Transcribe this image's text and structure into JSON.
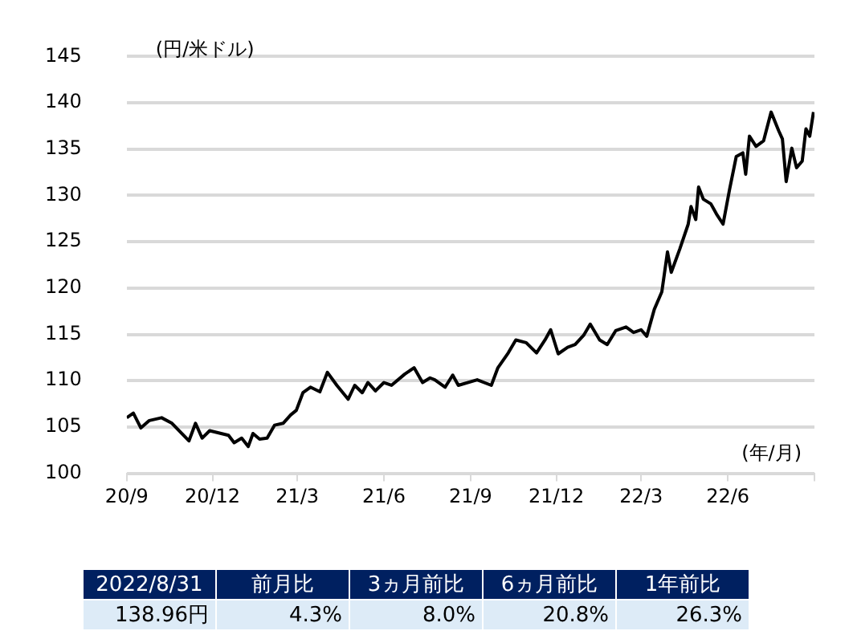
{
  "chart_data": {
    "type": "line",
    "xlabel": "(年/月)",
    "ylabel": "(円/米ドル)",
    "x": [
      "2020-09-01",
      "2020-09-08",
      "2020-09-16",
      "2020-09-25",
      "2020-10-08",
      "2020-10-19",
      "2020-11-06",
      "2020-11-13",
      "2020-11-20",
      "2020-11-28",
      "2020-12-18",
      "2020-12-24",
      "2021-01-01",
      "2021-01-08",
      "2021-01-13",
      "2021-01-20",
      "2021-01-28",
      "2021-02-05",
      "2021-02-14",
      "2021-02-22",
      "2021-02-28",
      "2021-03-07",
      "2021-03-15",
      "2021-03-25",
      "2021-04-02",
      "2021-04-12",
      "2021-04-24",
      "2021-05-01",
      "2021-05-09",
      "2021-05-15",
      "2021-05-23",
      "2021-06-01",
      "2021-06-09",
      "2021-06-23",
      "2021-07-03",
      "2021-07-12",
      "2021-07-20",
      "2021-07-25",
      "2021-08-05",
      "2021-08-13",
      "2021-08-19",
      "2021-09-08",
      "2021-09-23",
      "2021-09-30",
      "2021-10-11",
      "2021-10-19",
      "2021-10-30",
      "2021-11-10",
      "2021-11-19",
      "2021-11-25",
      "2021-12-03",
      "2021-12-13",
      "2021-12-21",
      "2021-12-30",
      "2022-01-06",
      "2022-01-16",
      "2022-01-24",
      "2022-02-02",
      "2022-02-13",
      "2022-02-21",
      "2022-03-01",
      "2022-03-07",
      "2022-03-15",
      "2022-03-23",
      "2022-03-29",
      "2022-04-02",
      "2022-04-11",
      "2022-04-20",
      "2022-04-23",
      "2022-04-28",
      "2022-05-01",
      "2022-05-06",
      "2022-05-14",
      "2022-05-20",
      "2022-05-27",
      "2022-06-03",
      "2022-06-10",
      "2022-06-17",
      "2022-06-20",
      "2022-06-24",
      "2022-07-01",
      "2022-07-09",
      "2022-07-17",
      "2022-07-25",
      "2022-07-29",
      "2022-08-02",
      "2022-08-08",
      "2022-08-13",
      "2022-08-19",
      "2022-08-23",
      "2022-08-27",
      "2022-08-31"
    ],
    "series": [
      {
        "color": "#000000",
        "values": [
          106.0,
          106.5,
          104.9,
          105.7,
          106.0,
          105.4,
          103.5,
          105.4,
          103.8,
          104.6,
          104.1,
          103.3,
          103.8,
          102.9,
          104.3,
          103.7,
          103.8,
          105.2,
          105.4,
          106.3,
          106.8,
          108.7,
          109.3,
          108.8,
          110.9,
          109.5,
          108.0,
          109.5,
          108.7,
          109.8,
          108.9,
          109.8,
          109.5,
          110.7,
          111.4,
          109.8,
          110.3,
          110.1,
          109.3,
          110.6,
          109.5,
          110.1,
          109.5,
          111.4,
          113.0,
          114.4,
          114.1,
          113.0,
          114.4,
          115.5,
          112.9,
          113.6,
          113.9,
          114.9,
          116.1,
          114.4,
          113.9,
          115.4,
          115.8,
          115.2,
          115.5,
          114.8,
          117.7,
          119.6,
          123.9,
          121.7,
          124.2,
          126.9,
          128.8,
          127.4,
          130.9,
          129.6,
          129.1,
          128.0,
          126.9,
          130.7,
          134.2,
          134.6,
          132.3,
          136.4,
          135.3,
          135.9,
          139.0,
          137.0,
          136.1,
          131.5,
          135.1,
          133.0,
          133.7,
          137.2,
          136.4,
          139.0
        ]
      }
    ],
    "xlim": [
      "2020-09",
      "2022-09"
    ],
    "xticks": [
      {
        "value": "2020-09",
        "label": "20/9"
      },
      {
        "value": "2020-12",
        "label": "20/12"
      },
      {
        "value": "2021-03",
        "label": "21/3"
      },
      {
        "value": "2021-06",
        "label": "21/6"
      },
      {
        "value": "2021-09",
        "label": "21/9"
      },
      {
        "value": "2021-12",
        "label": "21/12"
      },
      {
        "value": "2022-03",
        "label": "22/3"
      },
      {
        "value": "2022-06",
        "label": "22/6"
      },
      {
        "value": "2022-09",
        "label": null
      }
    ],
    "ylim": [
      100,
      145
    ],
    "yticks": [
      100,
      105,
      110,
      115,
      120,
      125,
      130,
      135,
      140,
      145
    ],
    "grid": "y",
    "legend": false,
    "marker": "none",
    "line_style": "solid",
    "annotations": [
      "2022/8/31",
      "前月比",
      "3ヵ月前比",
      "6ヵ月前比",
      "1年前比",
      "138.96円",
      "4.3%",
      "8.0%",
      "20.8%",
      "26.3%"
    ]
  }
}
